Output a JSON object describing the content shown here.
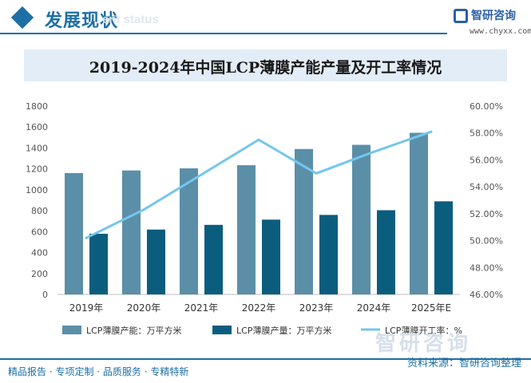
{
  "header": {
    "title": "发展现状",
    "subtitle": "ent status",
    "brand": "智研咨询",
    "url": "www.chyxx.com"
  },
  "footer": {
    "left": "精品报告 · 专项定制 · 品质服务 · 专精特新",
    "source": "资料来源：智研咨询整理",
    "watermark": "智研咨询"
  },
  "colors": {
    "capacity": "#5b8fa8",
    "production": "#0b5d7e",
    "rate": "#74c6ee",
    "accent": "#1d6fa5"
  },
  "chart_data": {
    "type": "bar",
    "title": "2019-2024年中国LCP薄膜产能产量及开工率情况",
    "categories": [
      "2019年",
      "2020年",
      "2021年",
      "2022年",
      "2023年",
      "2024年",
      "2025年E"
    ],
    "series": [
      {
        "name": "LCP薄膜产能：万平方米",
        "type": "bar",
        "axis": "left",
        "values": [
          1160,
          1185,
          1205,
          1235,
          1390,
          1430,
          1545
        ]
      },
      {
        "name": "LCP薄膜产量：万平方米",
        "type": "bar",
        "axis": "left",
        "values": [
          580,
          620,
          665,
          715,
          760,
          805,
          890
        ]
      },
      {
        "name": "LCP薄膜开工率：%",
        "type": "line",
        "axis": "right",
        "values": [
          50.2,
          52.3,
          54.9,
          57.5,
          55.0,
          56.6,
          58.1
        ]
      }
    ],
    "left_axis": {
      "ylim": [
        0,
        1800
      ],
      "ticks": [
        "0",
        "200",
        "400",
        "600",
        "800",
        "1000",
        "1200",
        "1400",
        "1600",
        "1800"
      ]
    },
    "right_axis": {
      "ylim": [
        46,
        60
      ],
      "ticks": [
        "46.00%",
        "48.00%",
        "50.00%",
        "52.00%",
        "54.00%",
        "56.00%",
        "58.00%",
        "60.00%"
      ]
    },
    "legend_position": "bottom",
    "grid": false
  }
}
